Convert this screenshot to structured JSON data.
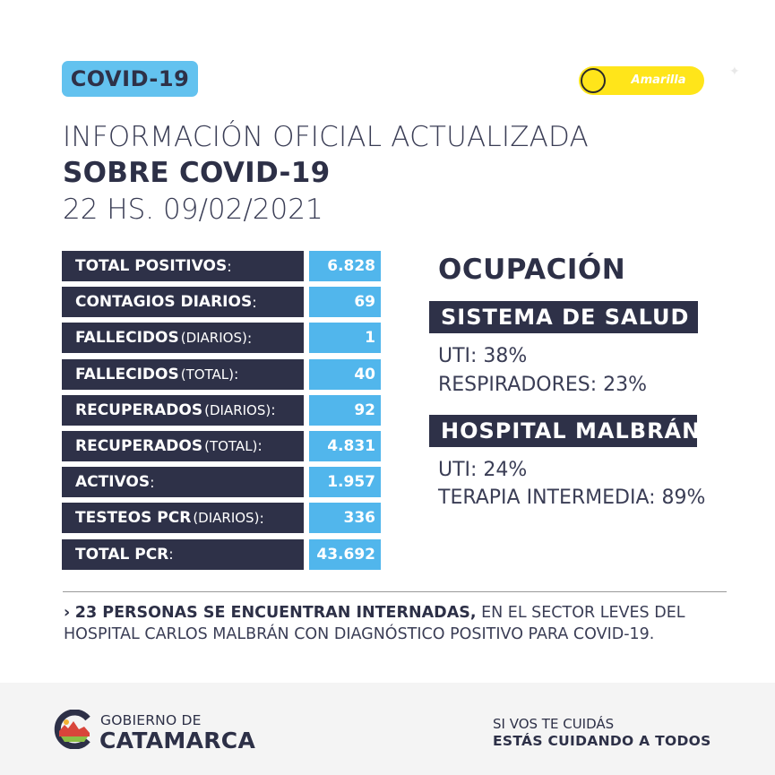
{
  "badge": "COVID-19",
  "alert_level": {
    "label": "Amarilla",
    "color": "#ffe51a"
  },
  "heading": {
    "line1": "INFORMACIÓN OFICIAL ACTUALIZADA",
    "line2": "SOBRE COVID-19",
    "line3": "22 HS. 09/02/2021"
  },
  "stats": [
    {
      "label": "TOTAL POSITIVOS",
      "qualifier": "",
      "value": "6.828"
    },
    {
      "label": "CONTAGIOS DIARIOS",
      "qualifier": "",
      "value": "69"
    },
    {
      "label": "FALLECIDOS",
      "qualifier": "(DIARIOS)",
      "value": "1"
    },
    {
      "label": "FALLECIDOS",
      "qualifier": "(TOTAL)",
      "value": "40"
    },
    {
      "label": "RECUPERADOS",
      "qualifier": "(DIARIOS)",
      "value": "92"
    },
    {
      "label": "RECUPERADOS",
      "qualifier": "(TOTAL)",
      "value": "4.831"
    },
    {
      "label": "ACTIVOS",
      "qualifier": "",
      "value": "1.957"
    },
    {
      "label": "TESTEOS PCR",
      "qualifier": "(DIARIOS)",
      "value": "336"
    },
    {
      "label": "TOTAL PCR",
      "qualifier": "",
      "value": "43.692"
    }
  ],
  "occupation": {
    "title": "OCUPACIÓN",
    "health_system": {
      "title": "SISTEMA DE SALUD",
      "lines": [
        "UTI: 38%",
        "RESPIRADORES: 23%"
      ]
    },
    "hospital": {
      "title": "HOSPITAL MALBRÁN",
      "lines": [
        "UTI: 24%",
        "TERAPIA INTERMEDIA: 89%"
      ]
    }
  },
  "note": {
    "bullet": "›",
    "bold": "23 PERSONAS SE ENCUENTRAN INTERNADAS,",
    "rest": " EN EL SECTOR LEVES DEL HOSPITAL CARLOS MALBRÁN CON DIAGNÓSTICO POSITIVO PARA COVID-19."
  },
  "footer": {
    "gov_line1": "GOBIERNO DE",
    "gov_line2": "CATAMARCA",
    "slogan_line1": "SI VOS TE CUIDÁS",
    "slogan_line2": "ESTÁS CUIDANDO A TODOS"
  },
  "colors": {
    "navy": "#2e3148",
    "blue": "#51b6ec",
    "badge": "#63c2ef",
    "yellow": "#ffe51a"
  }
}
